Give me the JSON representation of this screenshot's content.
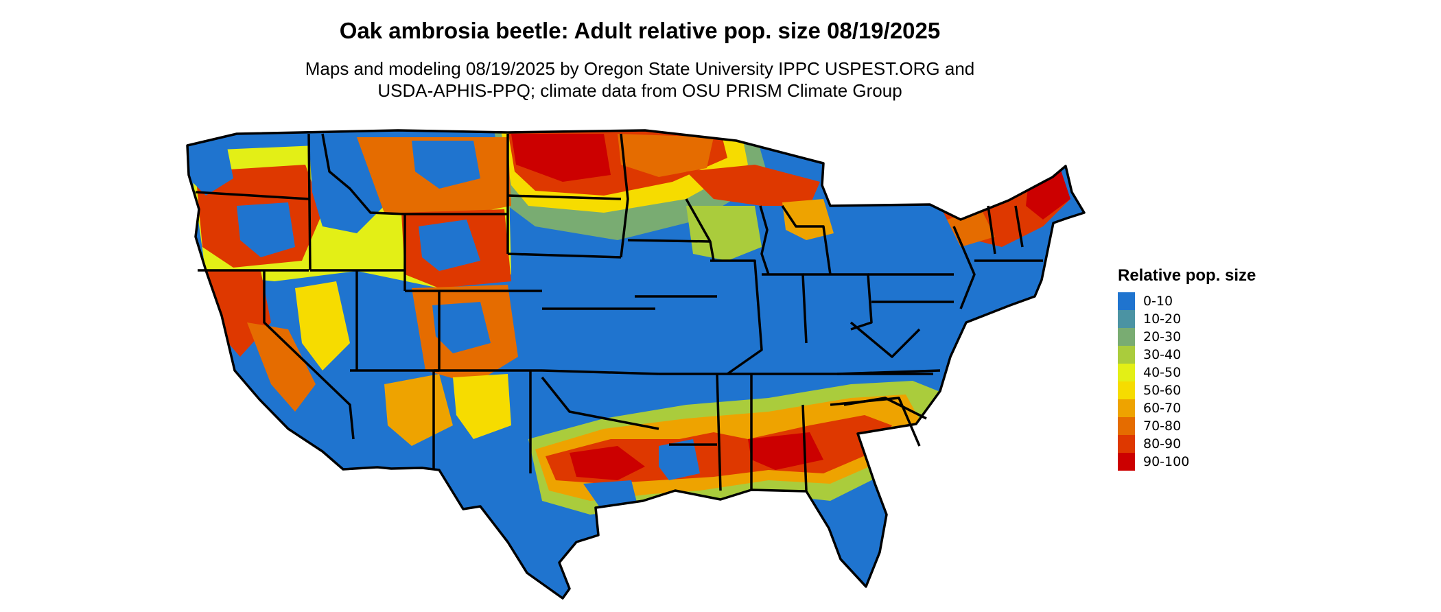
{
  "title": "Oak ambrosia beetle: Adult relative pop. size 08/19/2025",
  "subtitle_lines": [
    "Maps and modeling 08/19/2025 by Oregon State University IPPC USPEST.ORG and",
    "USDA-APHIS-PPQ; climate data from OSU PRISM Climate Group"
  ],
  "legend": {
    "title": "Relative pop. size",
    "items": [
      {
        "label": "0-10",
        "color": "#1f74cf"
      },
      {
        "label": "10-20",
        "color": "#4b93a3"
      },
      {
        "label": "20-30",
        "color": "#79ac72"
      },
      {
        "label": "30-40",
        "color": "#aacc3c"
      },
      {
        "label": "40-50",
        "color": "#e3ef16"
      },
      {
        "label": "50-60",
        "color": "#f6dc00"
      },
      {
        "label": "60-70",
        "color": "#eea300"
      },
      {
        "label": "70-80",
        "color": "#e56c00"
      },
      {
        "label": "80-90",
        "color": "#de3800"
      },
      {
        "label": "90-100",
        "color": "#cc0000"
      }
    ]
  },
  "map": {
    "region": "contiguous-united-states",
    "background_class": "0-10",
    "outline_color": "#000000"
  }
}
